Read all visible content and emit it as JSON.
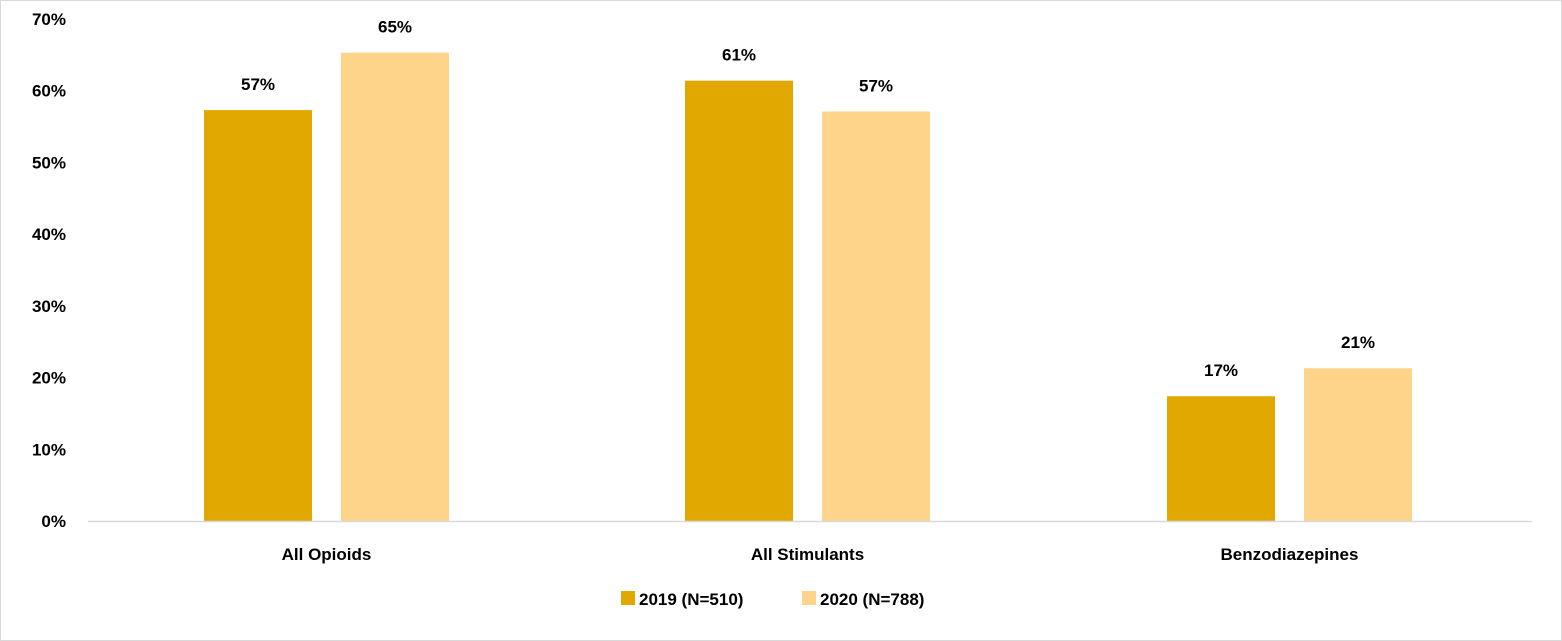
{
  "chart_data": {
    "type": "bar",
    "title": "",
    "xlabel": "",
    "ylabel": "",
    "categories": [
      "All Opioids",
      "All Stimulants",
      "Benzodiazepines"
    ],
    "series": [
      {
        "name": "2019 (N=510)",
        "color": "#e0a800",
        "values": [
          57.3,
          61.4,
          17.4
        ],
        "labels": [
          "57%",
          "61%",
          "17%"
        ]
      },
      {
        "name": "2020 (N=788)",
        "color": "#fed38a",
        "values": [
          65.3,
          57.1,
          21.3
        ],
        "labels": [
          "65%",
          "57%",
          "21%"
        ]
      }
    ],
    "ylim": [
      0,
      70
    ],
    "yticks": [
      0,
      10,
      20,
      30,
      40,
      50,
      60,
      70
    ],
    "ytick_labels": [
      "0%",
      "10%",
      "20%",
      "30%",
      "40%",
      "50%",
      "60%",
      "70%"
    ],
    "grid": false,
    "legend_position": "bottom-center",
    "axis_color": "#d9d9d9"
  }
}
